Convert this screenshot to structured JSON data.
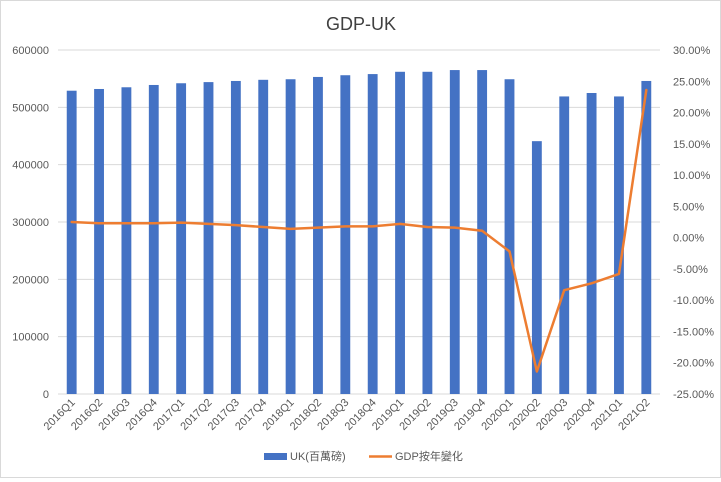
{
  "chart_data": {
    "type": "bar",
    "title": "GDP-UK",
    "categories": [
      "2016Q1",
      "2016Q2",
      "2016Q3",
      "2016Q4",
      "2017Q1",
      "2017Q2",
      "2017Q3",
      "2017Q4",
      "2018Q1",
      "2018Q2",
      "2018Q3",
      "2018Q4",
      "2019Q1",
      "2019Q2",
      "2019Q3",
      "2019Q4",
      "2020Q1",
      "2020Q2",
      "2020Q3",
      "2020Q4",
      "2021Q1",
      "2021Q2"
    ],
    "series": [
      {
        "name": "UK(百萬磅)",
        "type": "bar",
        "axis": "left",
        "color": "#4472C4",
        "values": [
          529000,
          532000,
          535000,
          539000,
          542000,
          544000,
          546000,
          548000,
          549000,
          553000,
          556000,
          558000,
          562000,
          562000,
          565000,
          565000,
          549000,
          441000,
          519000,
          525000,
          519000,
          546000
        ]
      },
      {
        "name": "GDP按年變化",
        "type": "line",
        "axis": "right",
        "color": "#ED7D31",
        "values": [
          2.5,
          2.3,
          2.3,
          2.3,
          2.4,
          2.2,
          2.0,
          1.7,
          1.4,
          1.6,
          1.8,
          1.8,
          2.2,
          1.7,
          1.6,
          1.1,
          -2.2,
          -21.4,
          -8.4,
          -7.3,
          -5.8,
          23.6
        ]
      }
    ],
    "y_left": {
      "min": 0,
      "max": 600000,
      "ticks": [
        0,
        100000,
        200000,
        300000,
        400000,
        500000,
        600000
      ],
      "tick_labels": [
        "0",
        "100000",
        "200000",
        "300000",
        "400000",
        "500000",
        "600000"
      ]
    },
    "y_right": {
      "min": -25,
      "max": 30,
      "unit": "%",
      "ticks": [
        -25,
        -20,
        -15,
        -10,
        -5,
        0,
        5,
        10,
        15,
        20,
        25,
        30
      ],
      "tick_labels": [
        "-25.00%",
        "-20.00%",
        "-15.00%",
        "-10.00%",
        "-5.00%",
        "0.00%",
        "5.00%",
        "10.00%",
        "15.00%",
        "20.00%",
        "25.00%",
        "30.00%"
      ]
    },
    "grid": true,
    "legend": "bottom"
  }
}
